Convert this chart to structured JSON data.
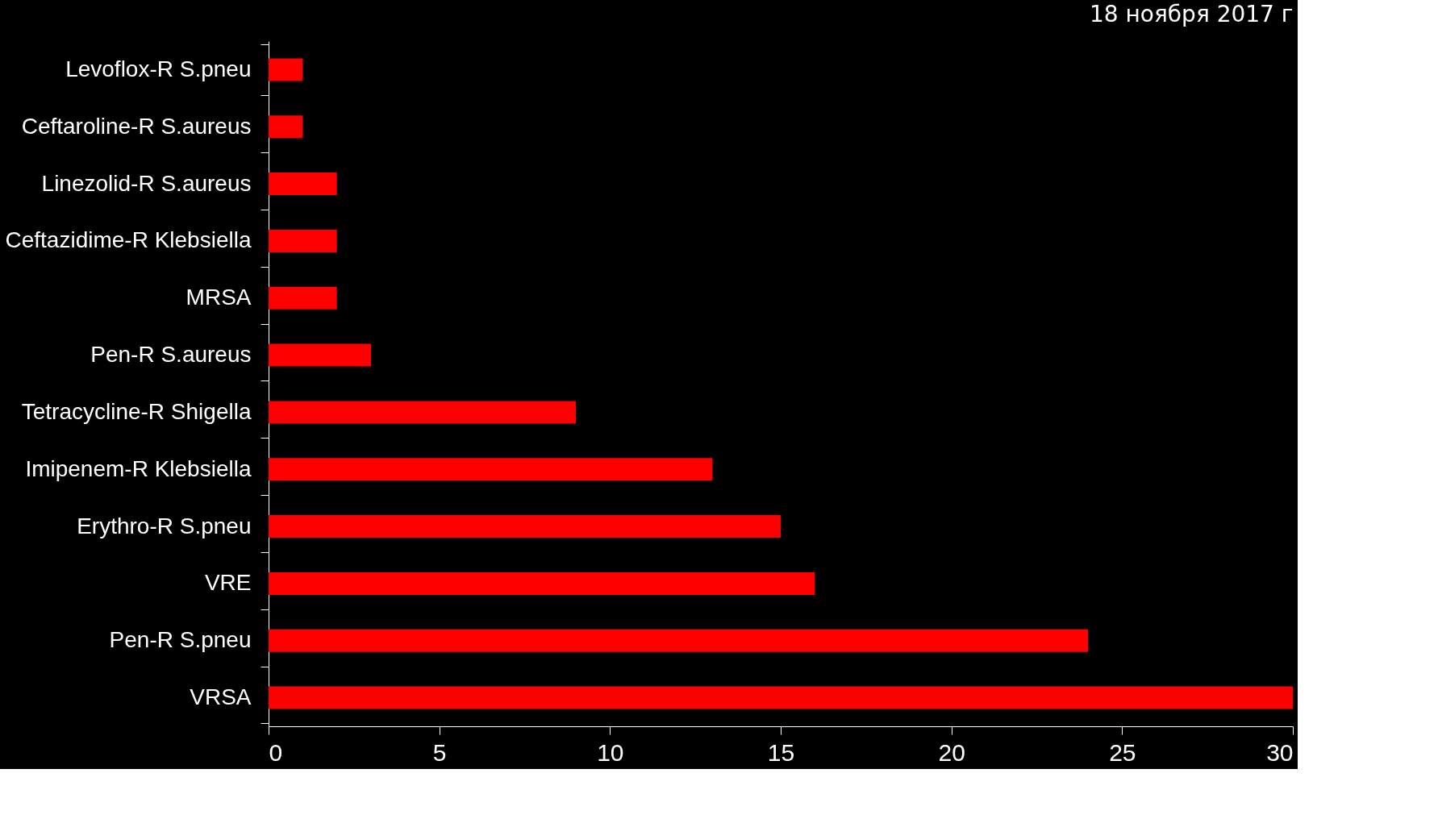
{
  "chart_data": {
    "type": "bar",
    "orientation": "horizontal",
    "categories": [
      "Levoflox-R S.pneu",
      "Ceftaroline-R S.aureus",
      "Linezolid-R S.aureus",
      "Ceftazidime-R Klebsiella",
      "MRSA",
      "Pen-R S.aureus",
      "Tetracycline-R Shigella",
      "Imipenem-R Klebsiella",
      "Erythro-R S.pneu",
      "VRE",
      "Pen-R S.pneu",
      "VRSA"
    ],
    "values": [
      1,
      1,
      2,
      2,
      2,
      3,
      9,
      13,
      15,
      16,
      24,
      30
    ],
    "color": "#ff0000",
    "xlim": [
      0,
      30
    ],
    "xticks": [
      0,
      5,
      10,
      15,
      20,
      25,
      30
    ],
    "grid": false,
    "annotations": [
      "18 ноября 2017 г"
    ]
  }
}
